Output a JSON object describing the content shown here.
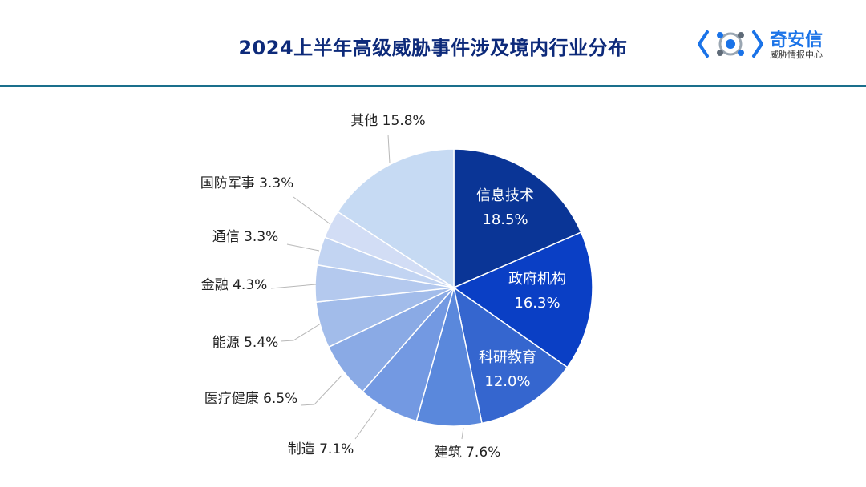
{
  "header": {
    "title": "2024上半年高级威胁事件涉及境内行业分布",
    "logo_name": "奇安信",
    "logo_sub": "威胁情报中心"
  },
  "colors": {
    "title": "#0d2a7a",
    "rule": "#1a6f8c",
    "logo": "#1a73e8"
  },
  "chart_data": {
    "type": "pie",
    "unit": "%",
    "slices": [
      {
        "label": "信息技术",
        "value": 18.5,
        "display": "18.5%",
        "color": "#0a3596",
        "inside": true
      },
      {
        "label": "政府机构",
        "value": 16.3,
        "display": "16.3%",
        "color": "#0a3fc5",
        "inside": true
      },
      {
        "label": "科研教育",
        "value": 12.0,
        "display": "12.0%",
        "color": "#3566cf",
        "inside": true
      },
      {
        "label": "建筑",
        "value": 7.6,
        "display": "7.6%",
        "color": "#5a88dc",
        "inside": false
      },
      {
        "label": "制造",
        "value": 7.1,
        "display": "7.1%",
        "color": "#7399e2",
        "inside": false
      },
      {
        "label": "医疗健康",
        "value": 6.5,
        "display": "6.5%",
        "color": "#8aaae5",
        "inside": false
      },
      {
        "label": "能源",
        "value": 5.4,
        "display": "5.4%",
        "color": "#a2bcea",
        "inside": false
      },
      {
        "label": "金融",
        "value": 4.3,
        "display": "4.3%",
        "color": "#b4c9ee",
        "inside": false
      },
      {
        "label": "通信",
        "value": 3.3,
        "display": "3.3%",
        "color": "#c2d4f2",
        "inside": false
      },
      {
        "label": "国防军事",
        "value": 3.3,
        "display": "3.3%",
        "color": "#d2ddf5",
        "inside": false
      },
      {
        "label": "其他",
        "value": 15.8,
        "display": "15.8%",
        "color": "#c6daf3",
        "inside": false
      }
    ]
  }
}
